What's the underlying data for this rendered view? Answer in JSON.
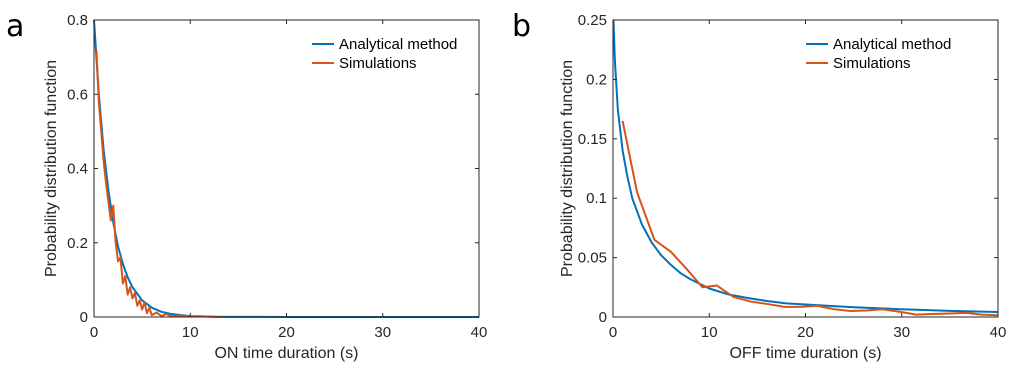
{
  "chart_data": [
    {
      "panel_letter": "a",
      "type": "line",
      "xlabel": "ON time duration (s)",
      "ylabel": "Probability distribution function",
      "xlim": [
        0,
        40
      ],
      "ylim": [
        0,
        0.8
      ],
      "xticks": [
        0,
        10,
        20,
        30,
        40
      ],
      "yticks": [
        0,
        0.2,
        0.4,
        0.6,
        0.8
      ],
      "xtick_labels": [
        "0",
        "10",
        "20",
        "30",
        "40"
      ],
      "ytick_labels": [
        "0",
        "0.2",
        "0.4",
        "0.6",
        "0.8"
      ],
      "grid": false,
      "legend_position": "top-right",
      "series": [
        {
          "name": "Analytical method",
          "color": "#0072BD",
          "x": [
            0,
            0.5,
            1,
            1.5,
            2,
            2.5,
            3,
            3.5,
            4,
            5,
            6,
            7,
            8,
            10,
            13,
            20,
            30,
            40
          ],
          "y": [
            0.8,
            0.6,
            0.45,
            0.34,
            0.255,
            0.19,
            0.143,
            0.107,
            0.08,
            0.045,
            0.025,
            0.014,
            0.008,
            0.0025,
            0.0004,
            0,
            0,
            0
          ]
        },
        {
          "name": "Simulations",
          "color": "#D95319",
          "x": [
            0.25,
            0.5,
            0.75,
            1.0,
            1.25,
            1.5,
            1.75,
            2.0,
            2.25,
            2.5,
            2.75,
            3.0,
            3.25,
            3.5,
            3.75,
            4.0,
            4.25,
            4.5,
            4.75,
            5.0,
            5.25,
            5.5,
            5.75,
            6.0,
            6.5,
            7.0,
            7.5,
            8.0,
            9.0,
            10.0,
            11.0,
            12.0,
            13.3
          ],
          "y": [
            0.72,
            0.58,
            0.5,
            0.42,
            0.36,
            0.31,
            0.26,
            0.3,
            0.2,
            0.15,
            0.16,
            0.09,
            0.11,
            0.06,
            0.08,
            0.05,
            0.065,
            0.03,
            0.045,
            0.02,
            0.04,
            0.01,
            0.025,
            0.005,
            0.012,
            0.003,
            0.008,
            0.002,
            0.004,
            0.001,
            0.002,
            0.001,
            0.0
          ]
        }
      ]
    },
    {
      "panel_letter": "b",
      "type": "line",
      "xlabel": "OFF time duration (s)",
      "ylabel": "Probability distribution function",
      "xlim": [
        0,
        40
      ],
      "ylim": [
        0,
        0.25
      ],
      "xticks": [
        0,
        10,
        20,
        30,
        40
      ],
      "yticks": [
        0,
        0.05,
        0.1,
        0.15,
        0.2,
        0.25
      ],
      "xtick_labels": [
        "0",
        "10",
        "20",
        "30",
        "40"
      ],
      "ytick_labels": [
        "0",
        "0.05",
        "0.1",
        "0.15",
        "0.2",
        "0.25"
      ],
      "grid": false,
      "legend_position": "top-right",
      "series": [
        {
          "name": "Analytical method",
          "color": "#0072BD",
          "x": [
            0.05,
            0.2,
            0.5,
            1,
            1.5,
            2,
            3,
            4,
            5,
            6,
            7,
            8,
            9,
            10,
            12,
            14,
            16,
            18,
            20,
            25,
            30,
            35,
            40
          ],
          "y": [
            0.25,
            0.215,
            0.175,
            0.14,
            0.118,
            0.1,
            0.078,
            0.063,
            0.052,
            0.044,
            0.037,
            0.032,
            0.028,
            0.024,
            0.019,
            0.016,
            0.0135,
            0.0115,
            0.0105,
            0.0082,
            0.0065,
            0.0052,
            0.0042
          ]
        },
        {
          "name": "Simulations",
          "color": "#D95319",
          "x": [
            1.0,
            2.5,
            4.3,
            6.0,
            7.7,
            9.3,
            10.8,
            12.5,
            14.3,
            16.0,
            17.8,
            19.5,
            21.2,
            23.0,
            24.7,
            26.3,
            28.0,
            29.7,
            31.5,
            33.2,
            35.0,
            36.7,
            38.3,
            40.0
          ],
          "y": [
            0.165,
            0.105,
            0.065,
            0.055,
            0.04,
            0.025,
            0.0265,
            0.017,
            0.013,
            0.011,
            0.0085,
            0.0085,
            0.0095,
            0.0065,
            0.005,
            0.0055,
            0.0065,
            0.0045,
            0.002,
            0.0025,
            0.003,
            0.0035,
            0.002,
            0.0015
          ]
        }
      ]
    }
  ]
}
